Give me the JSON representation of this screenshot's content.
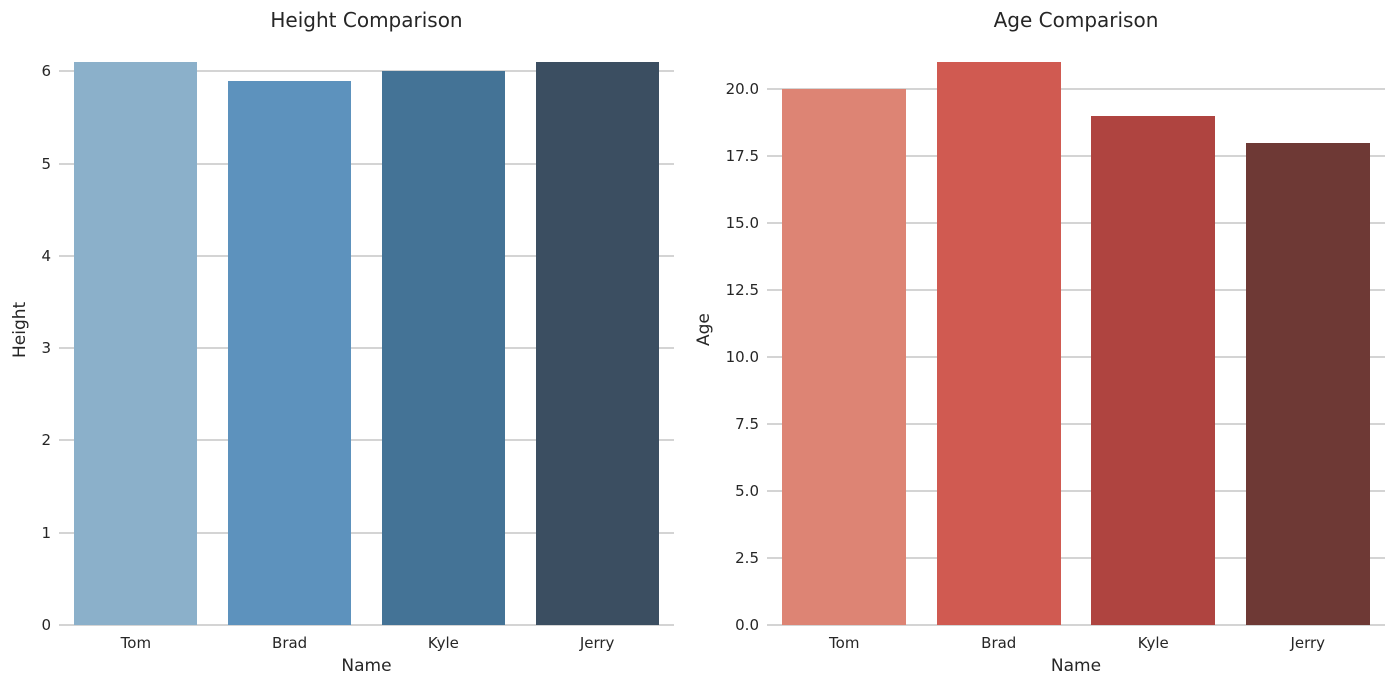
{
  "figure": {
    "background": "#ffffff",
    "text_color": "#262626",
    "grid_color": "#d4d4d4"
  },
  "chart_data": [
    {
      "type": "bar",
      "title": "Height Comparison",
      "xlabel": "Name",
      "ylabel": "Height",
      "categories": [
        "Tom",
        "Brad",
        "Kyle",
        "Jerry"
      ],
      "values": [
        6.1,
        5.9,
        6.0,
        6.1
      ],
      "bar_colors": [
        "#8bb0ca",
        "#5d92bd",
        "#447396",
        "#3b4e61"
      ],
      "yticks": [
        0,
        1,
        2,
        3,
        4,
        5,
        6
      ],
      "ytick_labels": [
        "0",
        "1",
        "2",
        "3",
        "4",
        "5",
        "6"
      ],
      "ylim": [
        0,
        6.405
      ],
      "grid": "horizontal",
      "legend_position": "none"
    },
    {
      "type": "bar",
      "title": "Age Comparison",
      "xlabel": "Name",
      "ylabel": "Age",
      "categories": [
        "Tom",
        "Brad",
        "Kyle",
        "Jerry"
      ],
      "values": [
        20,
        21,
        19,
        18
      ],
      "bar_colors": [
        "#dd8474",
        "#d05a51",
        "#af4440",
        "#6e3935"
      ],
      "yticks": [
        0,
        2.5,
        5,
        7.5,
        10,
        12.5,
        15,
        17.5,
        20
      ],
      "ytick_labels": [
        "0.0",
        "2.5",
        "5.0",
        "7.5",
        "10.0",
        "12.5",
        "15.0",
        "17.5",
        "20.0"
      ],
      "ylim": [
        0,
        22.05
      ],
      "grid": "horizontal",
      "legend_position": "none"
    }
  ]
}
